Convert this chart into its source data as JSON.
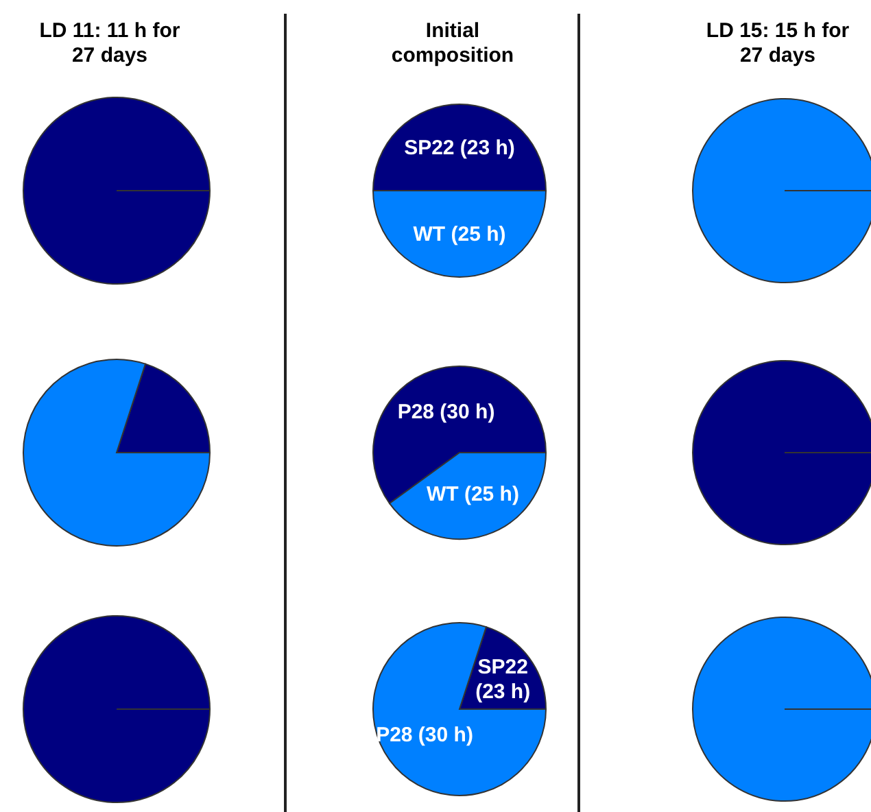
{
  "chart_data": [
    {
      "type": "pie",
      "title": "LD 11: 11 h for 27 days",
      "categories": [
        null,
        null
      ],
      "values": [
        100,
        0
      ],
      "colors": [
        "#000080",
        "#0080ff"
      ]
    },
    {
      "type": "pie",
      "title": "Initial composition",
      "categories": [
        "SP22 (23 h)",
        "WT (25 h)"
      ],
      "values": [
        50,
        50
      ],
      "colors": [
        "#000080",
        "#0080ff"
      ]
    },
    {
      "type": "pie",
      "title": "LD 15: 15 h for 27 days",
      "categories": [
        null,
        null
      ],
      "values": [
        0,
        100
      ],
      "colors": [
        "#000080",
        "#0080ff"
      ]
    },
    {
      "type": "pie",
      "categories": [
        null,
        null
      ],
      "values": [
        20,
        80
      ],
      "colors": [
        "#000080",
        "#0080ff"
      ]
    },
    {
      "type": "pie",
      "categories": [
        "P28 (30 h)",
        "WT (25 h)"
      ],
      "values": [
        60,
        40
      ],
      "colors": [
        "#000080",
        "#0080ff"
      ]
    },
    {
      "type": "pie",
      "categories": [
        null,
        null
      ],
      "values": [
        100,
        0
      ],
      "colors": [
        "#000080",
        "#0080ff"
      ]
    },
    {
      "type": "pie",
      "categories": [
        null,
        null
      ],
      "values": [
        100,
        0
      ],
      "colors": [
        "#000080",
        "#0080ff"
      ]
    },
    {
      "type": "pie",
      "categories": [
        "SP22 (23 h)",
        "P28 (30 h)"
      ],
      "values": [
        20,
        80
      ],
      "colors": [
        "#000080",
        "#0080ff"
      ]
    },
    {
      "type": "pie",
      "categories": [
        null,
        null
      ],
      "values": [
        0,
        100
      ],
      "colors": [
        "#000080",
        "#0080ff"
      ]
    }
  ]
}
